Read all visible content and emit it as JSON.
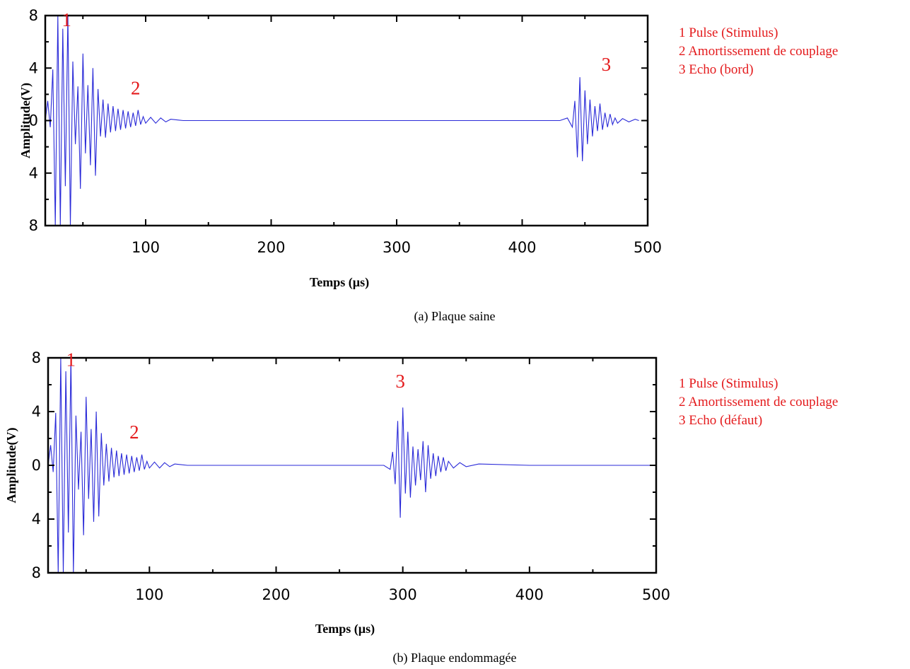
{
  "chart_data": [
    {
      "type": "line",
      "caption": "(a)   Plaque saine",
      "xlabel": "Temps (µs)",
      "ylabel": "Amplitude(V)",
      "xlim": [
        20,
        500
      ],
      "ylim": [
        -8,
        8
      ],
      "x_ticks": [
        "100",
        "200",
        "300",
        "400",
        "500"
      ],
      "x_tick_values": [
        100,
        200,
        300,
        400,
        500
      ],
      "y_ticks": [
        "8",
        "4",
        "0",
        "4",
        "8"
      ],
      "y_tick_values": [
        8,
        4,
        0,
        -4,
        -8
      ],
      "color": "#2a2ad8",
      "markers": [
        {
          "label": "1",
          "x": 37,
          "y": 7.2
        },
        {
          "label": "2",
          "x": 92,
          "y": 2.0
        },
        {
          "label": "3",
          "x": 467,
          "y": 3.8
        }
      ],
      "legend": [
        "1 Pulse (Stimulus)",
        "2 Amortissement de couplage",
        "3 Echo (bord)"
      ],
      "series": [
        {
          "x": [
            20,
            22,
            24,
            26,
            28,
            30,
            32,
            34,
            36,
            38,
            40,
            42,
            44,
            46,
            48,
            50,
            52,
            54,
            56,
            58,
            60,
            62,
            64,
            66,
            68,
            70,
            72,
            74,
            76,
            78,
            80,
            82,
            84,
            86,
            88,
            90,
            92,
            94,
            96,
            98,
            100,
            104,
            108,
            112,
            116,
            120,
            130,
            150,
            200,
            250,
            300,
            350,
            400,
            430,
            436,
            440,
            442,
            444,
            446,
            448,
            450,
            452,
            454,
            456,
            458,
            460,
            462,
            464,
            466,
            468,
            470,
            472,
            474,
            476,
            480,
            485,
            490,
            493
          ],
          "y": [
            0,
            1.5,
            -0.5,
            3.9,
            -8,
            8,
            -8,
            7,
            -5,
            8,
            -8,
            4.5,
            -1.8,
            2.6,
            -5.2,
            5.1,
            -2.5,
            2.7,
            -3.4,
            4,
            -4.2,
            2.4,
            -1.2,
            1.6,
            -1.3,
            1.3,
            -0.9,
            1.1,
            -0.8,
            0.9,
            -0.7,
            0.8,
            -0.6,
            0.7,
            -0.5,
            0.6,
            -0.4,
            0.8,
            -0.3,
            0.3,
            -0.2,
            0.25,
            -0.2,
            0.2,
            -0.1,
            0.1,
            0,
            0,
            0,
            0,
            0,
            0,
            0,
            0,
            0.2,
            -0.5,
            1.5,
            -2.8,
            3.3,
            -3.1,
            2.3,
            -1.8,
            1.6,
            -1.2,
            1.1,
            -0.8,
            1.3,
            -0.7,
            0.6,
            -0.5,
            0.5,
            -0.3,
            0.2,
            -0.2,
            0.15,
            -0.1,
            0.1,
            0
          ]
        }
      ]
    },
    {
      "type": "line",
      "caption": "(b)   Plaque endommagée",
      "xlabel": "Temps (µs)",
      "ylabel": "Amplitude(V)",
      "xlim": [
        20,
        500
      ],
      "ylim": [
        -8,
        8
      ],
      "x_ticks": [
        "100",
        "200",
        "300",
        "400",
        "500"
      ],
      "x_tick_values": [
        100,
        200,
        300,
        400,
        500
      ],
      "y_ticks": [
        "8",
        "4",
        "0",
        "4",
        "8"
      ],
      "y_tick_values": [
        8,
        4,
        0,
        -4,
        -8
      ],
      "color": "#2a2ad8",
      "markers": [
        {
          "label": "1",
          "x": 38,
          "y": 7.4
        },
        {
          "label": "2",
          "x": 88,
          "y": 2.0
        },
        {
          "label": "3",
          "x": 298,
          "y": 5.8
        }
      ],
      "legend": [
        "1 Pulse (Stimulus)",
        "2 Amortissement de couplage",
        "3 Echo (défaut)"
      ],
      "series": [
        {
          "x": [
            20,
            22,
            24,
            26,
            28,
            30,
            32,
            34,
            36,
            38,
            40,
            42,
            44,
            46,
            48,
            50,
            52,
            54,
            56,
            58,
            60,
            62,
            64,
            66,
            68,
            70,
            72,
            74,
            76,
            78,
            80,
            82,
            84,
            86,
            88,
            90,
            92,
            94,
            96,
            98,
            100,
            104,
            108,
            112,
            116,
            120,
            130,
            150,
            200,
            250,
            285,
            290,
            292,
            294,
            296,
            298,
            300,
            302,
            304,
            306,
            308,
            310,
            312,
            314,
            316,
            318,
            320,
            322,
            324,
            326,
            328,
            330,
            332,
            334,
            336,
            340,
            345,
            350,
            360,
            400,
            450,
            500
          ],
          "y": [
            0,
            1.5,
            -0.5,
            3.9,
            -8,
            8,
            -8,
            7,
            -5,
            8,
            -8,
            3.7,
            -1.8,
            2.5,
            -5.2,
            5.1,
            -2.5,
            2.7,
            -4.2,
            4,
            -3.8,
            2.4,
            -1.5,
            1.6,
            -1.2,
            1.3,
            -0.9,
            1.1,
            -0.8,
            0.9,
            -0.7,
            0.8,
            -0.6,
            0.7,
            -0.5,
            0.6,
            -0.4,
            0.8,
            -0.3,
            0.3,
            -0.2,
            0.25,
            -0.2,
            0.2,
            -0.1,
            0.1,
            0,
            0,
            0,
            0,
            0,
            -0.3,
            1.0,
            -1.4,
            3.3,
            -3.9,
            4.3,
            -2.1,
            2.5,
            -2.4,
            1.4,
            -1.5,
            1.2,
            -1.1,
            1.8,
            -2.0,
            1.5,
            -1.0,
            0.9,
            -0.8,
            0.7,
            -0.5,
            0.6,
            -0.4,
            0.3,
            -0.2,
            0.2,
            -0.1,
            0.1,
            0,
            0,
            0
          ]
        }
      ]
    }
  ]
}
